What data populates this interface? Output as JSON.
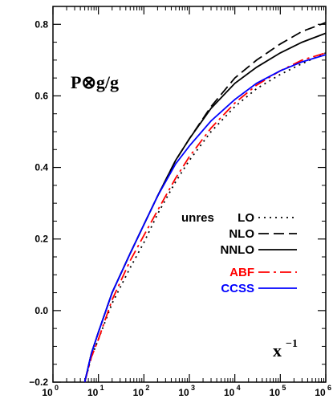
{
  "chart_data": {
    "type": "line",
    "title": "",
    "xlabel": "",
    "ylabel": "",
    "x_scale": "log",
    "xlim": [
      1,
      1000000
    ],
    "ylim": [
      -0.2,
      0.85
    ],
    "grid": false,
    "legend_position": "middle-right",
    "annotations": {
      "panel_label": "P⊗g/g",
      "x_axis_note": "x",
      "x_axis_note_exponent": "−1",
      "legend_prefix": "unres"
    },
    "x_ticks": [
      {
        "value": 1,
        "base": "10",
        "exp": "0"
      },
      {
        "value": 10,
        "base": "10",
        "exp": "1"
      },
      {
        "value": 100,
        "base": "10",
        "exp": "2"
      },
      {
        "value": 1000,
        "base": "10",
        "exp": "3"
      },
      {
        "value": 10000,
        "base": "10",
        "exp": "4"
      },
      {
        "value": 100000,
        "base": "10",
        "exp": "5"
      },
      {
        "value": 1000000,
        "base": "10",
        "exp": "6"
      }
    ],
    "y_ticks": [
      {
        "value": -0.2,
        "label": "−0.2"
      },
      {
        "value": 0.0,
        "label": "0.0"
      },
      {
        "value": 0.2,
        "label": "0.2"
      },
      {
        "value": 0.4,
        "label": "0.4"
      },
      {
        "value": 0.6,
        "label": "0.6"
      },
      {
        "value": 0.8,
        "label": "0.8"
      }
    ],
    "series": [
      {
        "name": "LO",
        "color": "#000000",
        "dash": "2,5",
        "x": [
          5,
          7,
          10,
          20,
          50,
          100,
          200,
          500,
          1000,
          3000,
          10000,
          30000,
          100000,
          300000,
          1000000
        ],
        "y": [
          -0.2,
          -0.13,
          -0.08,
          0.02,
          0.12,
          0.19,
          0.27,
          0.36,
          0.42,
          0.5,
          0.57,
          0.62,
          0.66,
          0.69,
          0.72
        ]
      },
      {
        "name": "NLO",
        "color": "#000000",
        "dash": "13,6",
        "x": [
          5,
          7,
          10,
          20,
          50,
          100,
          200,
          500,
          1000,
          3000,
          10000,
          30000,
          100000,
          300000,
          1000000
        ],
        "y": [
          -0.2,
          -0.12,
          -0.06,
          0.05,
          0.16,
          0.24,
          0.32,
          0.42,
          0.48,
          0.57,
          0.65,
          0.7,
          0.745,
          0.78,
          0.805
        ]
      },
      {
        "name": "NNLO",
        "color": "#000000",
        "dash": "",
        "x": [
          5,
          7,
          10,
          20,
          50,
          100,
          200,
          500,
          1000,
          3000,
          10000,
          30000,
          100000,
          300000,
          1000000
        ],
        "y": [
          -0.2,
          -0.12,
          -0.06,
          0.05,
          0.16,
          0.24,
          0.32,
          0.42,
          0.48,
          0.565,
          0.635,
          0.68,
          0.72,
          0.75,
          0.775
        ]
      },
      {
        "name": "ABF",
        "color": "#ff0000",
        "dash": "14,5,3,5",
        "x": [
          5,
          7,
          10,
          20,
          50,
          100,
          200,
          500,
          1000,
          3000,
          10000,
          30000,
          100000,
          300000,
          1000000
        ],
        "y": [
          -0.2,
          -0.13,
          -0.08,
          0.03,
          0.14,
          0.21,
          0.28,
          0.37,
          0.43,
          0.51,
          0.58,
          0.63,
          0.67,
          0.7,
          0.72
        ]
      },
      {
        "name": "CCSS",
        "color": "#0000ff",
        "dash": "",
        "x": [
          5,
          7,
          10,
          20,
          50,
          100,
          200,
          500,
          1000,
          3000,
          10000,
          30000,
          100000,
          300000,
          1000000
        ],
        "y": [
          -0.2,
          -0.12,
          -0.06,
          0.05,
          0.16,
          0.24,
          0.32,
          0.41,
          0.46,
          0.53,
          0.59,
          0.635,
          0.67,
          0.695,
          0.715
        ]
      }
    ]
  }
}
